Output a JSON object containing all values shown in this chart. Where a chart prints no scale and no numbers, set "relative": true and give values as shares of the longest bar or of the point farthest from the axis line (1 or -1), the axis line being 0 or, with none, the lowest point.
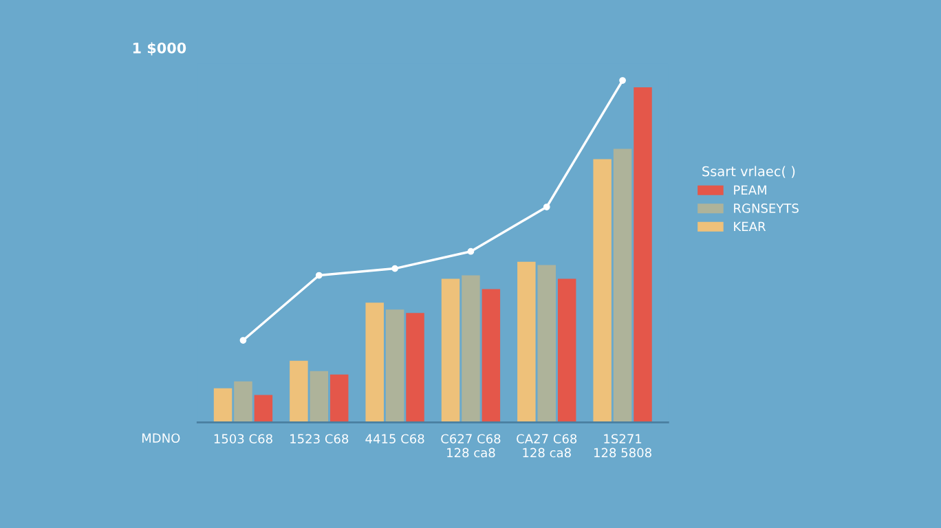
{
  "chart_data": {
    "type": "bar",
    "relative": true,
    "categories": [
      "1503 C68",
      "1523 C68",
      "4415 C68",
      "C627 C68\n128 ca8",
      "CA27 C68\n128 ca8",
      "1S271\n128 5808"
    ],
    "xlabel": "MDNO",
    "legend_title": "Ssart vrlaec( )",
    "legend": "right",
    "annotations": [
      "1 $000"
    ],
    "series": [
      {
        "name": "KEAR",
        "color": "#eec17a",
        "values": [
          0.1,
          0.18,
          0.35,
          0.42,
          0.47,
          0.77
        ]
      },
      {
        "name": "RGNSEYTS",
        "color": "#aeb39a",
        "values": [
          0.12,
          0.15,
          0.33,
          0.43,
          0.46,
          0.8
        ]
      },
      {
        "name": "PEAM",
        "color": "#e4574a",
        "values": [
          0.08,
          0.14,
          0.32,
          0.39,
          0.42,
          0.98
        ]
      },
      {
        "type": "line",
        "color": "#ffffff",
        "marker": "circle",
        "values": [
          0.24,
          0.43,
          0.45,
          0.5,
          0.63,
          1.0
        ]
      }
    ]
  }
}
